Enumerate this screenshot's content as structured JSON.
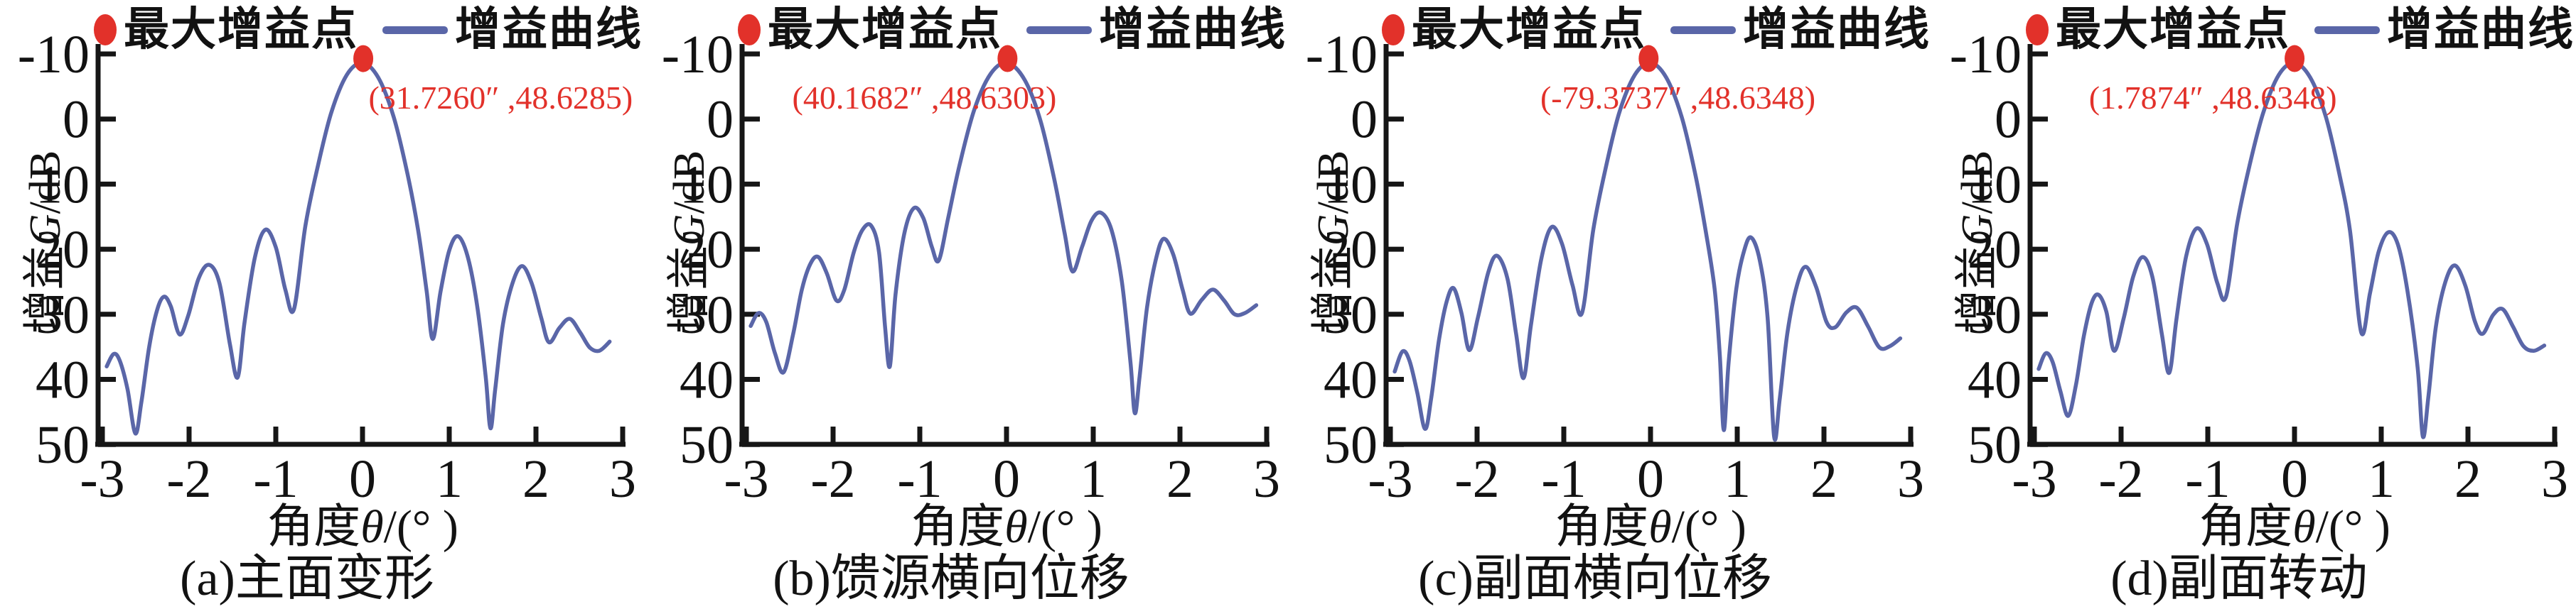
{
  "page": {
    "background": "#ffffff",
    "text_color": "#121212"
  },
  "legend": {
    "max_point_label": "最大增益点",
    "curve_label": "增益曲线",
    "point_color": "#e2312a",
    "curve_color": "#5a66a8"
  },
  "axes": {
    "ylabel_prefix": "增益",
    "ylabel_g": "G",
    "ylabel_suffix": "/dB",
    "xlabel_prefix": "角度",
    "xlabel_theta": "θ",
    "xlabel_suffix": "/(° )",
    "x_ticks": [
      "-3",
      "-2",
      "-1",
      "0",
      "1",
      "2",
      "3"
    ],
    "x_tick_values": [
      -3,
      -2,
      -1,
      0,
      1,
      2,
      3
    ],
    "y_ticks": [
      "50",
      "40",
      "30",
      "20",
      "10",
      "0",
      "-10"
    ],
    "y_tick_values": [
      50,
      40,
      30,
      20,
      10,
      0,
      -10
    ],
    "x_range": [
      -3,
      3
    ],
    "y_range": [
      -10,
      50
    ],
    "axis_color": "#161616"
  },
  "chart_data": [
    {
      "type": "line",
      "caption": "(a)主面变形",
      "xlabel": "角度θ/(° )",
      "ylabel": "增益G/dB",
      "x_range": [
        -3,
        3
      ],
      "y_range": [
        -10,
        50
      ],
      "legend": [
        "最大增益点",
        "增益曲线"
      ],
      "annotation": {
        "text": "(31.7260″ ,48.6285)",
        "x_theta": 0.02,
        "y_db": 41.6
      },
      "peak": {
        "theta_arcsec": 31.726,
        "gain_db": 48.6285
      },
      "series": [
        {
          "name": "增益曲线",
          "points": [
            [
              -2.95,
              2.0
            ],
            [
              -2.87,
              3.9
            ],
            [
              -2.8,
              2.9
            ],
            [
              -2.71,
              -1.5
            ],
            [
              -2.62,
              -8.3
            ],
            [
              -2.55,
              -3.5
            ],
            [
              -2.46,
              5.0
            ],
            [
              -2.37,
              10.6
            ],
            [
              -2.29,
              12.7
            ],
            [
              -2.21,
              11.2
            ],
            [
              -2.11,
              6.9
            ],
            [
              -2.01,
              9.8
            ],
            [
              -1.89,
              15.5
            ],
            [
              -1.77,
              17.6
            ],
            [
              -1.65,
              14.8
            ],
            [
              -1.53,
              5.5
            ],
            [
              -1.44,
              0.3
            ],
            [
              -1.36,
              8.8
            ],
            [
              -1.24,
              18.8
            ],
            [
              -1.12,
              23.0
            ],
            [
              -1.0,
              20.3
            ],
            [
              -0.89,
              13.8
            ],
            [
              -0.79,
              10.8
            ],
            [
              -0.66,
              23.5
            ],
            [
              -0.52,
              32.5
            ],
            [
              -0.36,
              41.0
            ],
            [
              -0.18,
              46.8
            ],
            [
              0.0,
              48.63
            ],
            [
              0.18,
              46.4
            ],
            [
              0.36,
              40.3
            ],
            [
              0.52,
              31.5
            ],
            [
              0.64,
              23.0
            ],
            [
              0.74,
              13.5
            ],
            [
              0.81,
              6.2
            ],
            [
              0.9,
              13.5
            ],
            [
              1.0,
              19.8
            ],
            [
              1.1,
              22.0
            ],
            [
              1.21,
              19.0
            ],
            [
              1.32,
              11.5
            ],
            [
              1.42,
              0.5
            ],
            [
              1.475,
              -7.5
            ],
            [
              1.53,
              -1.5
            ],
            [
              1.62,
              8.5
            ],
            [
              1.73,
              14.8
            ],
            [
              1.84,
              17.4
            ],
            [
              1.95,
              14.8
            ],
            [
              2.06,
              9.5
            ],
            [
              2.15,
              5.7
            ],
            [
              2.27,
              7.9
            ],
            [
              2.39,
              9.3
            ],
            [
              2.51,
              7.2
            ],
            [
              2.62,
              4.9
            ],
            [
              2.73,
              4.4
            ],
            [
              2.85,
              5.8
            ]
          ]
        }
      ]
    },
    {
      "type": "line",
      "caption": "(b)馈源横向位移",
      "xlabel": "角度θ/(° )",
      "ylabel": "增益G/dB",
      "x_range": [
        -3,
        3
      ],
      "y_range": [
        -10,
        50
      ],
      "legend": [
        "最大增益点",
        "增益曲线"
      ],
      "annotation": {
        "text": "(40.1682″ ,48.6303)",
        "x_theta": -2.52,
        "y_db": 41.6
      },
      "peak": {
        "theta_arcsec": 40.1682,
        "gain_db": 48.6303
      },
      "series": [
        {
          "name": "增益曲线",
          "points": [
            [
              -2.95,
              8.2
            ],
            [
              -2.86,
              10.2
            ],
            [
              -2.77,
              8.8
            ],
            [
              -2.67,
              4.0
            ],
            [
              -2.57,
              1.1
            ],
            [
              -2.46,
              7.0
            ],
            [
              -2.36,
              13.8
            ],
            [
              -2.26,
              17.8
            ],
            [
              -2.17,
              18.8
            ],
            [
              -2.07,
              16.2
            ],
            [
              -1.96,
              12.1
            ],
            [
              -1.87,
              13.8
            ],
            [
              -1.76,
              19.6
            ],
            [
              -1.66,
              23.0
            ],
            [
              -1.56,
              23.6
            ],
            [
              -1.47,
              19.5
            ],
            [
              -1.4,
              8.0
            ],
            [
              -1.345,
              2.0
            ],
            [
              -1.28,
              13.0
            ],
            [
              -1.18,
              22.3
            ],
            [
              -1.07,
              26.3
            ],
            [
              -0.96,
              24.8
            ],
            [
              -0.86,
              20.3
            ],
            [
              -0.78,
              18.3
            ],
            [
              -0.67,
              25.0
            ],
            [
              -0.54,
              33.0
            ],
            [
              -0.37,
              41.5
            ],
            [
              -0.18,
              47.0
            ],
            [
              0.01,
              48.63
            ],
            [
              0.21,
              46.0
            ],
            [
              0.39,
              39.8
            ],
            [
              0.55,
              30.8
            ],
            [
              0.67,
              22.5
            ],
            [
              0.76,
              16.6
            ],
            [
              0.87,
              20.3
            ],
            [
              0.98,
              24.4
            ],
            [
              1.09,
              25.6
            ],
            [
              1.21,
              23.0
            ],
            [
              1.33,
              15.0
            ],
            [
              1.43,
              2.5
            ],
            [
              1.48,
              -5.2
            ],
            [
              1.535,
              0.5
            ],
            [
              1.62,
              11.0
            ],
            [
              1.72,
              18.3
            ],
            [
              1.81,
              21.6
            ],
            [
              1.92,
              19.3
            ],
            [
              2.03,
              13.8
            ],
            [
              2.12,
              10.1
            ],
            [
              2.25,
              12.2
            ],
            [
              2.38,
              13.8
            ],
            [
              2.51,
              12.1
            ],
            [
              2.63,
              10.0
            ],
            [
              2.75,
              10.2
            ],
            [
              2.88,
              11.4
            ]
          ]
        }
      ]
    },
    {
      "type": "line",
      "caption": "(c)副面横向位移",
      "xlabel": "角度θ/(° )",
      "ylabel": "增益G/dB",
      "x_range": [
        -3,
        3
      ],
      "y_range": [
        -10,
        50
      ],
      "legend": [
        "最大增益点",
        "增益曲线"
      ],
      "annotation": {
        "text": "(-79.3737″ ,48.6348)",
        "x_theta": -1.32,
        "y_db": 41.6
      },
      "peak": {
        "theta_arcsec": -79.3737,
        "gain_db": 48.6348
      },
      "series": [
        {
          "name": "增益曲线",
          "points": [
            [
              -2.95,
              1.2
            ],
            [
              -2.86,
              4.3
            ],
            [
              -2.78,
              2.9
            ],
            [
              -2.69,
              -2.0
            ],
            [
              -2.6,
              -7.6
            ],
            [
              -2.53,
              -3.0
            ],
            [
              -2.44,
              6.0
            ],
            [
              -2.35,
              12.0
            ],
            [
              -2.27,
              14.0
            ],
            [
              -2.18,
              10.2
            ],
            [
              -2.09,
              4.5
            ],
            [
              -1.99,
              9.5
            ],
            [
              -1.87,
              16.5
            ],
            [
              -1.77,
              19.0
            ],
            [
              -1.65,
              15.5
            ],
            [
              -1.55,
              7.0
            ],
            [
              -1.465,
              0.2
            ],
            [
              -1.38,
              8.2
            ],
            [
              -1.26,
              18.5
            ],
            [
              -1.14,
              23.4
            ],
            [
              -1.02,
              20.8
            ],
            [
              -0.9,
              14.5
            ],
            [
              -0.79,
              10.2
            ],
            [
              -0.66,
              23.0
            ],
            [
              -0.52,
              32.3
            ],
            [
              -0.36,
              41.0
            ],
            [
              -0.18,
              46.8
            ],
            [
              0.0,
              48.63
            ],
            [
              0.18,
              46.4
            ],
            [
              0.36,
              40.3
            ],
            [
              0.52,
              31.3
            ],
            [
              0.64,
              22.5
            ],
            [
              0.74,
              13.8
            ],
            [
              0.8,
              3.5
            ],
            [
              0.845,
              -7.8
            ],
            [
              0.9,
              2.5
            ],
            [
              0.99,
              14.0
            ],
            [
              1.08,
              19.8
            ],
            [
              1.16,
              21.8
            ],
            [
              1.26,
              18.3
            ],
            [
              1.35,
              9.5
            ],
            [
              1.425,
              -8.8
            ],
            [
              1.49,
              -3.0
            ],
            [
              1.58,
              7.3
            ],
            [
              1.69,
              14.5
            ],
            [
              1.79,
              17.3
            ],
            [
              1.91,
              14.2
            ],
            [
              2.03,
              8.8
            ],
            [
              2.13,
              8.0
            ],
            [
              2.26,
              10.3
            ],
            [
              2.38,
              11.0
            ],
            [
              2.51,
              8.1
            ],
            [
              2.64,
              4.9
            ],
            [
              2.76,
              5.1
            ],
            [
              2.88,
              6.3
            ]
          ]
        }
      ]
    },
    {
      "type": "line",
      "caption": "(d)副面转动",
      "xlabel": "角度θ/(° )",
      "ylabel": "增益G/dB",
      "x_range": [
        -3,
        3
      ],
      "y_range": [
        -10,
        50
      ],
      "legend": [
        "最大增益点",
        "增益曲线"
      ],
      "annotation": {
        "text": "(1.7874″ ,48.6348)",
        "x_theta": -2.42,
        "y_db": 41.6
      },
      "peak": {
        "theta_arcsec": 1.7874,
        "gain_db": 48.6348
      },
      "series": [
        {
          "name": "增益曲线",
          "points": [
            [
              -2.95,
              1.6
            ],
            [
              -2.87,
              4.0
            ],
            [
              -2.79,
              2.7
            ],
            [
              -2.7,
              -1.8
            ],
            [
              -2.61,
              -5.6
            ],
            [
              -2.52,
              -0.8
            ],
            [
              -2.43,
              6.6
            ],
            [
              -2.34,
              11.7
            ],
            [
              -2.26,
              13.0
            ],
            [
              -2.17,
              10.4
            ],
            [
              -2.08,
              4.4
            ],
            [
              -1.97,
              9.4
            ],
            [
              -1.86,
              15.8
            ],
            [
              -1.75,
              18.8
            ],
            [
              -1.64,
              15.8
            ],
            [
              -1.53,
              7.0
            ],
            [
              -1.445,
              1.0
            ],
            [
              -1.36,
              9.4
            ],
            [
              -1.25,
              18.9
            ],
            [
              -1.13,
              23.2
            ],
            [
              -1.01,
              20.8
            ],
            [
              -0.89,
              14.8
            ],
            [
              -0.79,
              12.7
            ],
            [
              -0.66,
              24.0
            ],
            [
              -0.52,
              32.8
            ],
            [
              -0.36,
              41.0
            ],
            [
              -0.18,
              46.8
            ],
            [
              0.0,
              48.63
            ],
            [
              0.18,
              46.4
            ],
            [
              0.36,
              40.4
            ],
            [
              0.52,
              31.4
            ],
            [
              0.64,
              22.8
            ],
            [
              0.77,
              7.2
            ],
            [
              0.87,
              13.2
            ],
            [
              0.97,
              19.6
            ],
            [
              1.08,
              22.6
            ],
            [
              1.19,
              20.8
            ],
            [
              1.3,
              13.8
            ],
            [
              1.42,
              1.8
            ],
            [
              1.48,
              -8.8
            ],
            [
              1.545,
              -2.5
            ],
            [
              1.63,
              8.1
            ],
            [
              1.74,
              15.0
            ],
            [
              1.85,
              17.5
            ],
            [
              1.97,
              14.4
            ],
            [
              2.08,
              8.9
            ],
            [
              2.17,
              7.0
            ],
            [
              2.29,
              9.9
            ],
            [
              2.4,
              10.8
            ],
            [
              2.52,
              8.1
            ],
            [
              2.64,
              5.1
            ],
            [
              2.76,
              4.4
            ],
            [
              2.88,
              5.2
            ]
          ]
        }
      ]
    }
  ]
}
